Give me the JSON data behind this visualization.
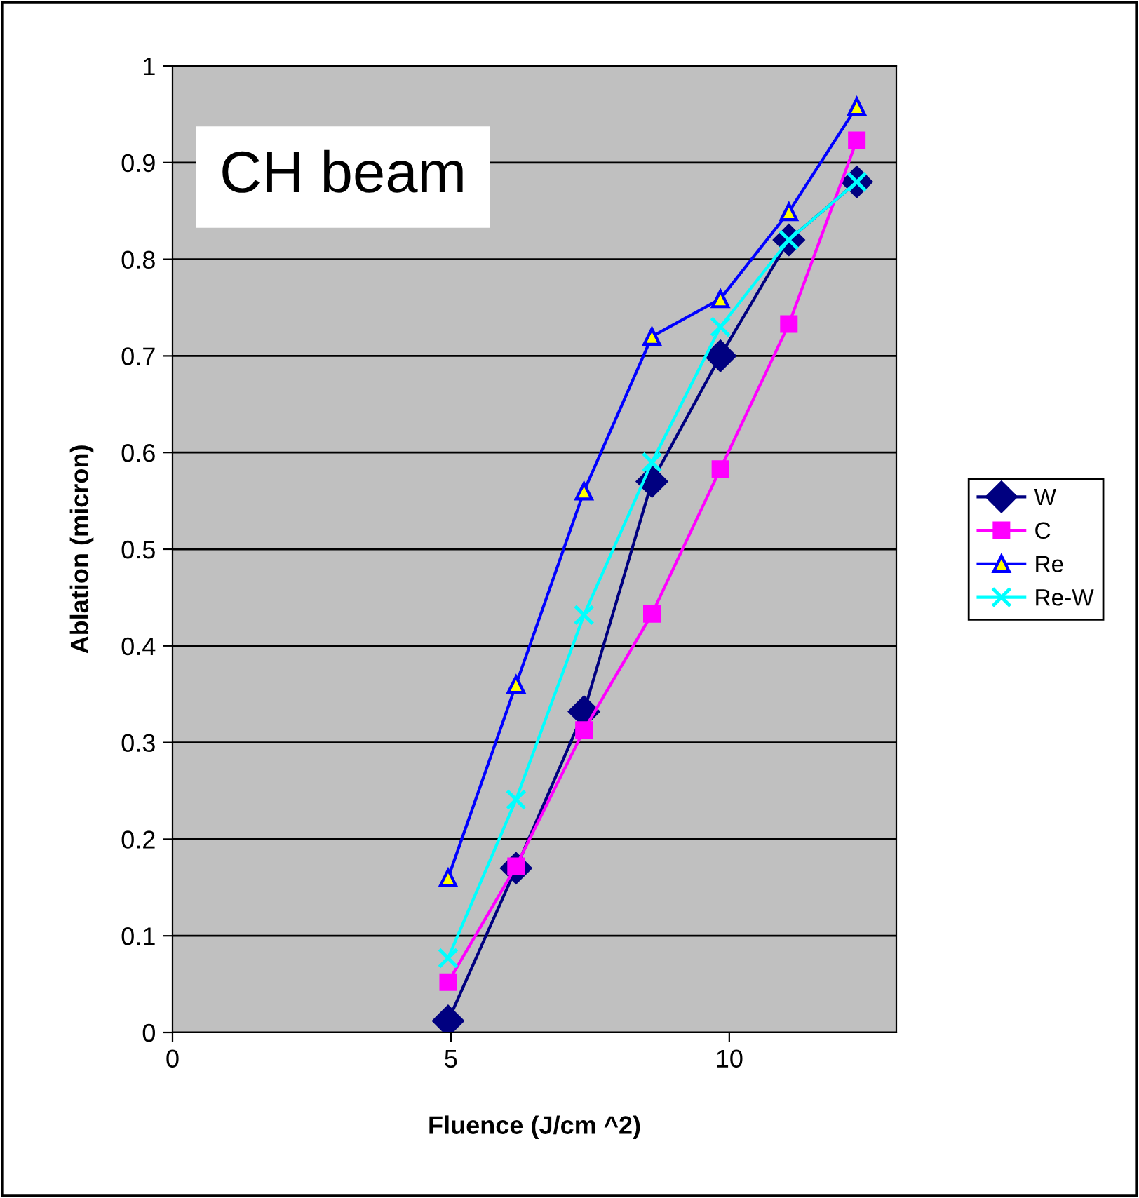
{
  "chart_data": {
    "type": "line",
    "xlabel": "Fluence (J/cm ^2)",
    "ylabel": "Ablation (micron)",
    "annotations": [
      "CH beam"
    ],
    "x": [
      4.95,
      6.17,
      7.39,
      8.61,
      9.84,
      11.07,
      12.29
    ],
    "xlim": [
      0,
      13
    ],
    "xticks": [
      0,
      5,
      10
    ],
    "ylim": [
      0,
      1
    ],
    "yticks": [
      0,
      0.1,
      0.2,
      0.3,
      0.4,
      0.5,
      0.6,
      0.7,
      0.8,
      0.9,
      1
    ],
    "grid": "y",
    "legend": "right",
    "series": [
      {
        "name": "W",
        "color": "#000080",
        "marker": "diamond",
        "values": [
          0.012,
          0.17,
          0.332,
          0.57,
          0.7,
          0.82,
          0.88
        ]
      },
      {
        "name": "C",
        "color": "#ff00ff",
        "marker": "square",
        "values": [
          0.052,
          0.172,
          0.313,
          0.433,
          0.583,
          0.733,
          0.923
        ]
      },
      {
        "name": "Re",
        "color": "#0000ff",
        "marker": "triangle",
        "values": [
          0.16,
          0.36,
          0.56,
          0.72,
          0.759,
          0.849,
          0.958
        ]
      },
      {
        "name": "Re-W",
        "color": "#00ffff",
        "marker": "cross",
        "values": [
          0.077,
          0.241,
          0.432,
          0.59,
          0.73,
          0.82,
          0.88
        ]
      }
    ]
  }
}
